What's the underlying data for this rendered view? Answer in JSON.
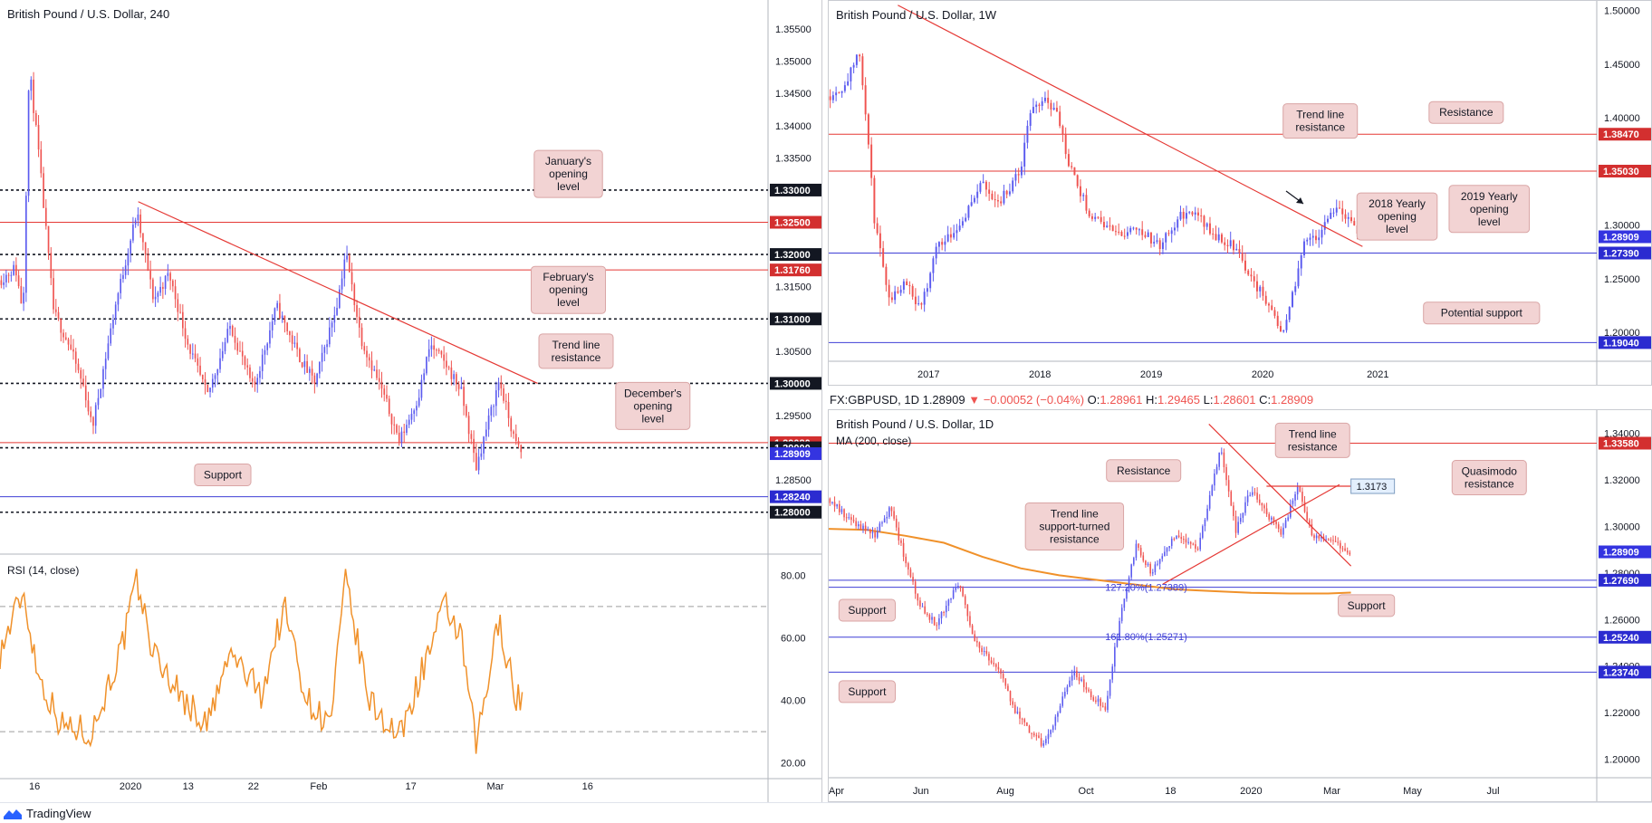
{
  "footer": {
    "brand": "TradingView",
    "logo_icon": "tradingview-logo-icon"
  },
  "info_line": {
    "symbol": "FX:GBPUSD, 1D",
    "last": "1.28909",
    "arrow": "▼",
    "change": "−0.00052 (−0.04%)",
    "o_label": "O:",
    "o": "1.28961",
    "h_label": "H:",
    "h": "1.29465",
    "l_label": "L:",
    "l": "1.28601",
    "c_label": "C:",
    "c": "1.28909"
  },
  "colors": {
    "bull": "#5b5bef",
    "bear": "#ef5350",
    "support": "#3f3fd6",
    "resistance": "#e53935",
    "ma": "#f0912a",
    "rsi": "#f0912a"
  },
  "chart_data": [
    {
      "id": "h4",
      "type": "candlestick",
      "title": "British Pound / U.S. Dollar, 240",
      "ylim": [
        1.2735,
        1.3595
      ],
      "y_ticks": [
        "1.35500",
        "1.35000",
        "1.34500",
        "1.34000",
        "1.33500",
        "1.33000",
        "1.32500",
        "1.32000",
        "1.31500",
        "1.31000",
        "1.30500",
        "1.30000",
        "1.29500",
        "1.29000",
        "1.28500",
        "1.28000"
      ],
      "x_ticks": [
        "16",
        "2020",
        "13",
        "22",
        "Feb",
        "17",
        "Mar",
        "16"
      ],
      "levels": [
        {
          "value": 1.33,
          "label": "1.33000",
          "style": "dotted",
          "kind": "round"
        },
        {
          "value": 1.325,
          "label": "1.32500",
          "style": "solid",
          "kind": "resistance"
        },
        {
          "value": 1.32,
          "label": "1.32000",
          "style": "dotted",
          "kind": "round"
        },
        {
          "value": 1.3176,
          "label": "1.31760",
          "style": "solid",
          "kind": "resistance"
        },
        {
          "value": 1.31,
          "label": "1.31000",
          "style": "dotted",
          "kind": "round"
        },
        {
          "value": 1.3,
          "label": "1.30000",
          "style": "dotted",
          "kind": "round"
        },
        {
          "value": 1.2908,
          "label": "1.29080",
          "style": "solid",
          "kind": "resistance"
        },
        {
          "value": 1.29,
          "label": "1.29000",
          "style": "dotted",
          "kind": "round"
        },
        {
          "value": 1.28909,
          "label": "1.28909",
          "style": "none",
          "kind": "price"
        },
        {
          "value": 1.2824,
          "label": "1.28240",
          "style": "solid",
          "kind": "support"
        },
        {
          "value": 1.28,
          "label": "1.28000",
          "style": "dotted",
          "kind": "round"
        }
      ],
      "trendlines": [
        {
          "from": [
            0.18,
            1.3282
          ],
          "to": [
            0.7,
            1.3
          ]
        }
      ],
      "annotations": [
        {
          "text": "January's\nopening\nlevel",
          "ax": 0.74,
          "ay": 1.3325
        },
        {
          "text": "February's\nopening\nlevel",
          "ax": 0.74,
          "ay": 1.3145
        },
        {
          "text": "Trend line\nresistance",
          "ax": 0.75,
          "ay": 1.305
        },
        {
          "text": "December's\nopening\nlevel",
          "ax": 0.85,
          "ay": 1.2965
        },
        {
          "text": "Support",
          "ax": 0.29,
          "ay": 1.2858
        }
      ],
      "path": [
        [
          0,
          1.316
        ],
        [
          0.02,
          1.318
        ],
        [
          0.03,
          1.311
        ],
        [
          0.038,
          1.349
        ],
        [
          0.05,
          1.336
        ],
        [
          0.07,
          1.311
        ],
        [
          0.09,
          1.306
        ],
        [
          0.11,
          1.299
        ],
        [
          0.12,
          1.293
        ],
        [
          0.15,
          1.312
        ],
        [
          0.178,
          1.3265
        ],
        [
          0.2,
          1.313
        ],
        [
          0.22,
          1.317
        ],
        [
          0.245,
          1.306
        ],
        [
          0.27,
          1.298
        ],
        [
          0.3,
          1.309
        ],
        [
          0.33,
          1.299
        ],
        [
          0.36,
          1.312
        ],
        [
          0.39,
          1.304
        ],
        [
          0.41,
          1.3
        ],
        [
          0.44,
          1.313
        ],
        [
          0.45,
          1.3205
        ],
        [
          0.47,
          1.307
        ],
        [
          0.5,
          1.298
        ],
        [
          0.52,
          1.291
        ],
        [
          0.545,
          1.298
        ],
        [
          0.56,
          1.306
        ],
        [
          0.58,
          1.303
        ],
        [
          0.6,
          1.299
        ],
        [
          0.62,
          1.287
        ],
        [
          0.65,
          1.3005
        ],
        [
          0.67,
          1.291
        ],
        [
          0.68,
          1.289
        ]
      ],
      "rsi": {
        "label": "RSI (14, close)",
        "ticks": [
          "80.00",
          "60.00",
          "40.00",
          "20.00"
        ],
        "bands": [
          70,
          30
        ],
        "ylim": [
          15,
          85
        ],
        "path": [
          [
            0,
            55
          ],
          [
            0.03,
            75
          ],
          [
            0.05,
            48
          ],
          [
            0.08,
            32
          ],
          [
            0.12,
            30
          ],
          [
            0.16,
            58
          ],
          [
            0.178,
            78
          ],
          [
            0.2,
            55
          ],
          [
            0.24,
            40
          ],
          [
            0.27,
            32
          ],
          [
            0.3,
            55
          ],
          [
            0.34,
            42
          ],
          [
            0.37,
            70
          ],
          [
            0.4,
            40
          ],
          [
            0.43,
            32
          ],
          [
            0.45,
            78
          ],
          [
            0.48,
            40
          ],
          [
            0.52,
            28
          ],
          [
            0.55,
            50
          ],
          [
            0.58,
            70
          ],
          [
            0.6,
            60
          ],
          [
            0.62,
            25
          ],
          [
            0.65,
            66
          ],
          [
            0.67,
            42
          ],
          [
            0.68,
            40
          ]
        ]
      }
    },
    {
      "id": "weekly",
      "type": "candlestick",
      "title": "British Pound / U.S. Dollar, 1W",
      "ylim": [
        1.173,
        1.509
      ],
      "y_ticks": [
        "1.50000",
        "1.45000",
        "1.40000",
        "1.35000",
        "1.30000",
        "1.25000",
        "1.20000"
      ],
      "x_ticks": [
        "2017",
        "2018",
        "2019",
        "2020",
        "2021"
      ],
      "levels": [
        {
          "value": 1.3847,
          "label": "1.38470",
          "style": "solid",
          "kind": "resistance"
        },
        {
          "value": 1.3503,
          "label": "1.35030",
          "style": "solid",
          "kind": "resistance"
        },
        {
          "value": 1.28909,
          "label": "1.28909",
          "style": "none",
          "kind": "price"
        },
        {
          "value": 1.2739,
          "label": "1.27390",
          "style": "solid",
          "kind": "support"
        },
        {
          "value": 1.1904,
          "label": "1.19040",
          "style": "solid",
          "kind": "support"
        }
      ],
      "trendlines": [
        {
          "from": [
            0.09,
            1.505
          ],
          "to": [
            0.695,
            1.28
          ]
        }
      ],
      "annotations": [
        {
          "text": "Trend line\nresistance",
          "ax": 0.64,
          "ay": 1.397
        },
        {
          "text": "Resistance",
          "ax": 0.83,
          "ay": 1.405
        },
        {
          "text": "2018 Yearly\nopening\nlevel",
          "ax": 0.74,
          "ay": 1.308
        },
        {
          "text": "2019 Yearly\nopening\nlevel",
          "ax": 0.86,
          "ay": 1.315
        },
        {
          "text": "Potential support",
          "ax": 0.85,
          "ay": 1.218
        }
      ],
      "path": [
        [
          0,
          1.42
        ],
        [
          0.02,
          1.43
        ],
        [
          0.04,
          1.46
        ],
        [
          0.05,
          1.39
        ],
        [
          0.06,
          1.3
        ],
        [
          0.08,
          1.23
        ],
        [
          0.1,
          1.25
        ],
        [
          0.12,
          1.22
        ],
        [
          0.14,
          1.28
        ],
        [
          0.17,
          1.3
        ],
        [
          0.2,
          1.34
        ],
        [
          0.22,
          1.32
        ],
        [
          0.25,
          1.35
        ],
        [
          0.26,
          1.4
        ],
        [
          0.28,
          1.42
        ],
        [
          0.3,
          1.4
        ],
        [
          0.31,
          1.36
        ],
        [
          0.34,
          1.31
        ],
        [
          0.36,
          1.3
        ],
        [
          0.38,
          1.29
        ],
        [
          0.4,
          1.3
        ],
        [
          0.43,
          1.28
        ],
        [
          0.46,
          1.31
        ],
        [
          0.48,
          1.31
        ],
        [
          0.5,
          1.29
        ],
        [
          0.53,
          1.28
        ],
        [
          0.55,
          1.25
        ],
        [
          0.57,
          1.23
        ],
        [
          0.59,
          1.2
        ],
        [
          0.61,
          1.25
        ],
        [
          0.62,
          1.29
        ],
        [
          0.64,
          1.29
        ],
        [
          0.66,
          1.32
        ],
        [
          0.68,
          1.3
        ],
        [
          0.69,
          1.289
        ]
      ]
    },
    {
      "id": "daily",
      "type": "candlestick",
      "title": "British Pound / U.S. Dollar, 1D",
      "indicator": "MA (200, close)",
      "ylim": [
        1.192,
        1.35
      ],
      "y_ticks": [
        "1.34000",
        "1.32000",
        "1.30000",
        "1.28000",
        "1.26000",
        "1.24000",
        "1.22000",
        "1.20000"
      ],
      "x_ticks": [
        "Apr",
        "Jun",
        "Aug",
        "Oct",
        "18",
        "2020",
        "Mar",
        "May",
        "Jul"
      ],
      "levels": [
        {
          "value": 1.3358,
          "label": "1.33580",
          "style": "solid",
          "kind": "resistance"
        },
        {
          "value": 1.28909,
          "label": "1.28909",
          "style": "none",
          "kind": "price"
        },
        {
          "value": 1.2769,
          "label": "1.27690",
          "style": "solid",
          "kind": "support"
        },
        {
          "value": 1.27389,
          "label": "",
          "style": "solid",
          "kind": "fib"
        },
        {
          "value": 1.2524,
          "label": "1.25240",
          "style": "solid",
          "kind": "support"
        },
        {
          "value": 1.25271,
          "label": "",
          "style": "none",
          "kind": "fib"
        },
        {
          "value": 1.2374,
          "label": "1.23740",
          "style": "solid",
          "kind": "support"
        }
      ],
      "fib_labels": [
        "127.20%(1.27389)",
        "161.80%(1.25271)"
      ],
      "quasimodo": {
        "value": 1.3173,
        "label": "1.3173"
      },
      "trendlines": [
        {
          "from": [
            0.435,
            1.2752
          ],
          "to": [
            0.665,
            1.318
          ]
        },
        {
          "from": [
            0.495,
            1.344
          ],
          "to": [
            0.68,
            1.283
          ]
        }
      ],
      "ma": [
        [
          0,
          1.299
        ],
        [
          0.05,
          1.2985
        ],
        [
          0.1,
          1.296
        ],
        [
          0.15,
          1.293
        ],
        [
          0.2,
          1.287
        ],
        [
          0.25,
          1.282
        ],
        [
          0.3,
          1.279
        ],
        [
          0.35,
          1.277
        ],
        [
          0.4,
          1.275
        ],
        [
          0.45,
          1.273
        ],
        [
          0.5,
          1.2722
        ],
        [
          0.55,
          1.2715
        ],
        [
          0.6,
          1.2712
        ],
        [
          0.65,
          1.2712
        ],
        [
          0.68,
          1.2716
        ]
      ],
      "annotations": [
        {
          "text": "Resistance",
          "ax": 0.41,
          "ay": 1.324
        },
        {
          "text": "Trend line\nresistance",
          "ax": 0.63,
          "ay": 1.337
        },
        {
          "text": "Quasimodo\nresistance",
          "ax": 0.86,
          "ay": 1.321
        },
        {
          "text": "Trend line\nsupport-turned\nresistance",
          "ax": 0.32,
          "ay": 1.3
        },
        {
          "text": "Support",
          "ax": 0.7,
          "ay": 1.266
        },
        {
          "text": "Support",
          "ax": 0.05,
          "ay": 1.264
        },
        {
          "text": "Support",
          "ax": 0.05,
          "ay": 1.229
        }
      ],
      "path": [
        [
          0,
          1.312
        ],
        [
          0.03,
          1.302
        ],
        [
          0.06,
          1.296
        ],
        [
          0.08,
          1.308
        ],
        [
          0.1,
          1.285
        ],
        [
          0.12,
          1.265
        ],
        [
          0.14,
          1.258
        ],
        [
          0.17,
          1.276
        ],
        [
          0.19,
          1.25
        ],
        [
          0.22,
          1.24
        ],
        [
          0.24,
          1.222
        ],
        [
          0.26,
          1.212
        ],
        [
          0.28,
          1.206
        ],
        [
          0.3,
          1.222
        ],
        [
          0.32,
          1.238
        ],
        [
          0.34,
          1.228
        ],
        [
          0.36,
          1.222
        ],
        [
          0.38,
          1.262
        ],
        [
          0.4,
          1.292
        ],
        [
          0.42,
          1.28
        ],
        [
          0.45,
          1.296
        ],
        [
          0.48,
          1.29
        ],
        [
          0.5,
          1.318
        ],
        [
          0.51,
          1.334
        ],
        [
          0.53,
          1.298
        ],
        [
          0.55,
          1.316
        ],
        [
          0.57,
          1.306
        ],
        [
          0.59,
          1.296
        ],
        [
          0.61,
          1.318
        ],
        [
          0.63,
          1.296
        ],
        [
          0.66,
          1.292
        ],
        [
          0.68,
          1.289
        ]
      ]
    }
  ]
}
